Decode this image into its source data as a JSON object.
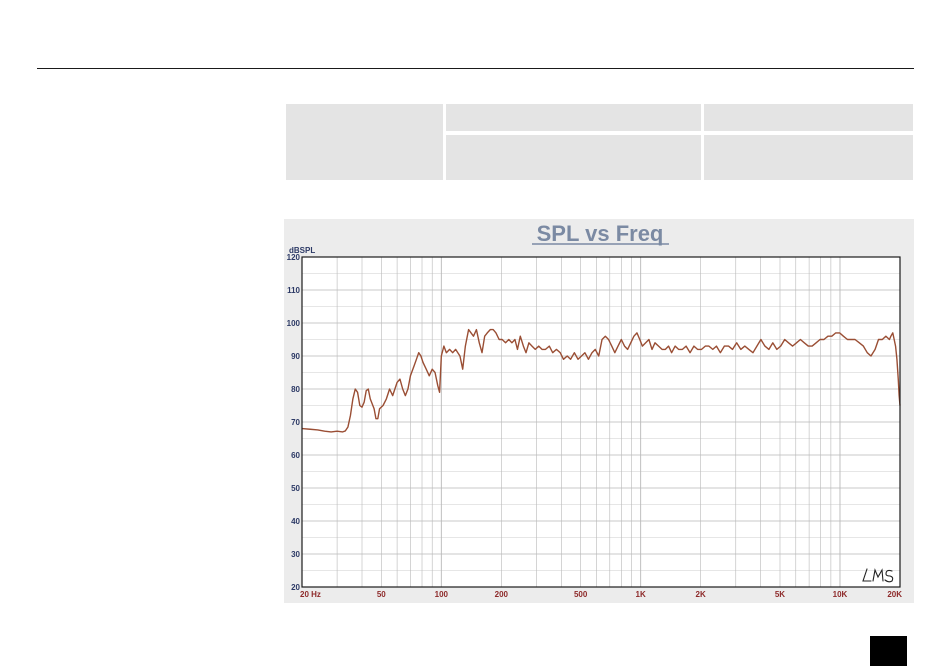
{
  "chart_data": {
    "type": "line",
    "title": "SPL vs Freq",
    "ylabel": "dBSPL",
    "xlabel": "",
    "x_scale": "log",
    "xlim": [
      20,
      20000
    ],
    "ylim": [
      20,
      120
    ],
    "grid": true,
    "y_ticks": [
      "120",
      "110",
      "100",
      "90",
      "80",
      "70",
      "60",
      "50",
      "40",
      "30",
      "20"
    ],
    "x_ticks": [
      {
        "value": 20,
        "label": "20  Hz"
      },
      {
        "value": 50,
        "label": "50"
      },
      {
        "value": 100,
        "label": "100"
      },
      {
        "value": 200,
        "label": "200"
      },
      {
        "value": 500,
        "label": "500"
      },
      {
        "value": 1000,
        "label": "1K"
      },
      {
        "value": 2000,
        "label": "2K"
      },
      {
        "value": 5000,
        "label": "5K"
      },
      {
        "value": 10000,
        "label": "10K"
      },
      {
        "value": 20000,
        "label": "20K"
      }
    ],
    "series": [
      {
        "color": "#9a4e34",
        "points": [
          [
            20,
            68
          ],
          [
            22,
            67.8
          ],
          [
            24,
            67.6
          ],
          [
            26,
            67.2
          ],
          [
            28,
            67
          ],
          [
            30,
            67.2
          ],
          [
            32,
            67
          ],
          [
            33,
            67.3
          ],
          [
            34,
            68.5
          ],
          [
            35,
            72
          ],
          [
            36,
            77
          ],
          [
            37,
            80
          ],
          [
            38,
            79
          ],
          [
            39,
            75
          ],
          [
            40,
            74.5
          ],
          [
            41,
            76
          ],
          [
            42,
            79.5
          ],
          [
            43,
            80
          ],
          [
            44,
            77
          ],
          [
            46,
            74
          ],
          [
            47,
            71
          ],
          [
            48,
            71
          ],
          [
            49,
            74
          ],
          [
            51,
            75
          ],
          [
            53,
            77
          ],
          [
            55,
            80
          ],
          [
            57,
            78
          ],
          [
            60,
            82
          ],
          [
            62,
            83
          ],
          [
            64,
            80
          ],
          [
            66,
            78
          ],
          [
            68,
            80
          ],
          [
            70,
            84
          ],
          [
            73,
            87
          ],
          [
            75,
            89
          ],
          [
            77,
            91
          ],
          [
            79,
            90
          ],
          [
            81,
            88
          ],
          [
            84,
            86
          ],
          [
            87,
            84
          ],
          [
            90,
            86
          ],
          [
            93,
            85
          ],
          [
            96,
            81
          ],
          [
            98,
            79
          ],
          [
            100,
            90
          ],
          [
            103,
            93
          ],
          [
            106,
            91
          ],
          [
            110,
            92
          ],
          [
            114,
            91
          ],
          [
            118,
            92
          ],
          [
            121,
            91
          ],
          [
            124,
            90
          ],
          [
            128,
            86
          ],
          [
            132,
            93
          ],
          [
            137,
            98
          ],
          [
            141,
            97
          ],
          [
            145,
            96
          ],
          [
            150,
            98
          ],
          [
            155,
            94
          ],
          [
            160,
            91
          ],
          [
            165,
            96
          ],
          [
            170,
            97
          ],
          [
            176,
            98
          ],
          [
            182,
            98
          ],
          [
            188,
            97
          ],
          [
            195,
            95
          ],
          [
            202,
            95
          ],
          [
            210,
            94
          ],
          [
            218,
            95
          ],
          [
            226,
            94
          ],
          [
            234,
            95
          ],
          [
            241,
            92
          ],
          [
            249,
            96
          ],
          [
            258,
            93
          ],
          [
            266,
            91
          ],
          [
            275,
            94
          ],
          [
            285,
            93
          ],
          [
            296,
            92
          ],
          [
            308,
            93
          ],
          [
            320,
            92
          ],
          [
            333,
            92
          ],
          [
            348,
            93
          ],
          [
            362,
            91
          ],
          [
            378,
            92
          ],
          [
            395,
            91
          ],
          [
            410,
            89
          ],
          [
            428,
            90
          ],
          [
            445,
            89
          ],
          [
            465,
            91
          ],
          [
            485,
            89
          ],
          [
            505,
            90
          ],
          [
            525,
            91
          ],
          [
            547,
            89
          ],
          [
            570,
            91
          ],
          [
            592,
            92
          ],
          [
            616,
            90
          ],
          [
            640,
            95
          ],
          [
            665,
            96
          ],
          [
            690,
            95
          ],
          [
            716,
            93
          ],
          [
            742,
            91
          ],
          [
            770,
            93
          ],
          [
            800,
            95
          ],
          [
            830,
            93
          ],
          [
            860,
            92
          ],
          [
            892,
            94
          ],
          [
            925,
            96
          ],
          [
            958,
            97
          ],
          [
            990,
            95
          ],
          [
            1020,
            93
          ],
          [
            1060,
            94
          ],
          [
            1100,
            95
          ],
          [
            1140,
            92
          ],
          [
            1180,
            94
          ],
          [
            1230,
            93
          ],
          [
            1280,
            92
          ],
          [
            1330,
            92
          ],
          [
            1380,
            93
          ],
          [
            1430,
            91
          ],
          [
            1490,
            93
          ],
          [
            1550,
            92
          ],
          [
            1620,
            92
          ],
          [
            1690,
            93
          ],
          [
            1770,
            91
          ],
          [
            1850,
            93
          ],
          [
            1930,
            92
          ],
          [
            2020,
            92
          ],
          [
            2110,
            93
          ],
          [
            2200,
            93
          ],
          [
            2300,
            92
          ],
          [
            2400,
            93
          ],
          [
            2510,
            91
          ],
          [
            2630,
            93
          ],
          [
            2760,
            93
          ],
          [
            2890,
            92
          ],
          [
            3030,
            94
          ],
          [
            3180,
            92
          ],
          [
            3330,
            93
          ],
          [
            3490,
            92
          ],
          [
            3660,
            91
          ],
          [
            3830,
            93
          ],
          [
            4010,
            95
          ],
          [
            4200,
            93
          ],
          [
            4400,
            92
          ],
          [
            4600,
            94
          ],
          [
            4820,
            92
          ],
          [
            5040,
            93
          ],
          [
            5280,
            95
          ],
          [
            5520,
            94
          ],
          [
            5780,
            93
          ],
          [
            6050,
            94
          ],
          [
            6330,
            95
          ],
          [
            6620,
            94
          ],
          [
            6930,
            93
          ],
          [
            7250,
            93
          ],
          [
            7590,
            94
          ],
          [
            7940,
            95
          ],
          [
            8310,
            95
          ],
          [
            8700,
            96
          ],
          [
            9100,
            96
          ],
          [
            9520,
            97
          ],
          [
            9960,
            97
          ],
          [
            10400,
            96
          ],
          [
            10900,
            95
          ],
          [
            11400,
            95
          ],
          [
            11900,
            95
          ],
          [
            12500,
            94
          ],
          [
            13100,
            93
          ],
          [
            13700,
            91
          ],
          [
            14300,
            90
          ],
          [
            15000,
            92
          ],
          [
            15600,
            95
          ],
          [
            16300,
            95
          ],
          [
            17000,
            96
          ],
          [
            17700,
            95
          ],
          [
            18000,
            96
          ],
          [
            18400,
            97
          ],
          [
            18700,
            95
          ],
          [
            19000,
            93
          ],
          [
            19300,
            89
          ],
          [
            19600,
            83
          ],
          [
            19800,
            78
          ],
          [
            20000,
            75
          ]
        ]
      }
    ]
  },
  "chart_colors": {
    "panel_background": "#ececec",
    "plot_background": "#ffffff",
    "grid": "#b8b8b8",
    "frame": "#1a1a1a",
    "title": "#7b8aa3",
    "y_tick_labels": "#2d3a66",
    "x_tick_labels": "#8e2a2a",
    "curve": "#9a4e34"
  }
}
